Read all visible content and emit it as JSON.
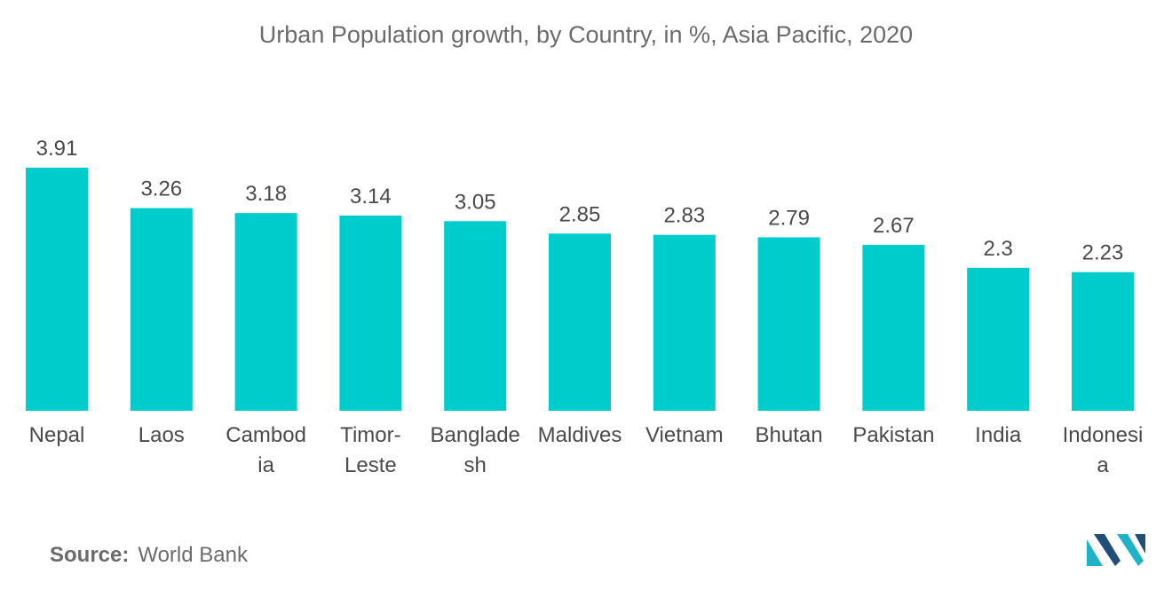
{
  "chart_data": {
    "type": "bar",
    "title": "Urban Population growth, by Country, in %, Asia Pacific, 2020",
    "categories": [
      [
        "Nepal"
      ],
      [
        "Laos"
      ],
      [
        "Cambod",
        "ia"
      ],
      [
        "Timor-",
        "Leste"
      ],
      [
        "Banglade",
        "sh"
      ],
      [
        "Maldives"
      ],
      [
        "Vietnam"
      ],
      [
        "Bhutan"
      ],
      [
        "Pakistan"
      ],
      [
        "India"
      ],
      [
        "Indonesi",
        "a"
      ]
    ],
    "values": [
      3.91,
      3.26,
      3.18,
      3.14,
      3.05,
      2.85,
      2.83,
      2.79,
      2.67,
      2.3,
      2.23
    ],
    "value_labels": [
      "3.91",
      "3.26",
      "3.18",
      "3.14",
      "3.05",
      "2.85",
      "2.83",
      "2.79",
      "2.67",
      "2.3",
      "2.23"
    ],
    "ylim": [
      0,
      3.91
    ],
    "xlabel": "",
    "ylabel": "",
    "grid": false,
    "legend": "none",
    "bar_color": "#00cccc"
  },
  "source": {
    "label": "Source:",
    "text": "World Bank"
  },
  "logo": {
    "icon": "mordor-intelligence-logo-icon",
    "color_dark": "#1f4e79",
    "color_light": "#20b2c6"
  }
}
